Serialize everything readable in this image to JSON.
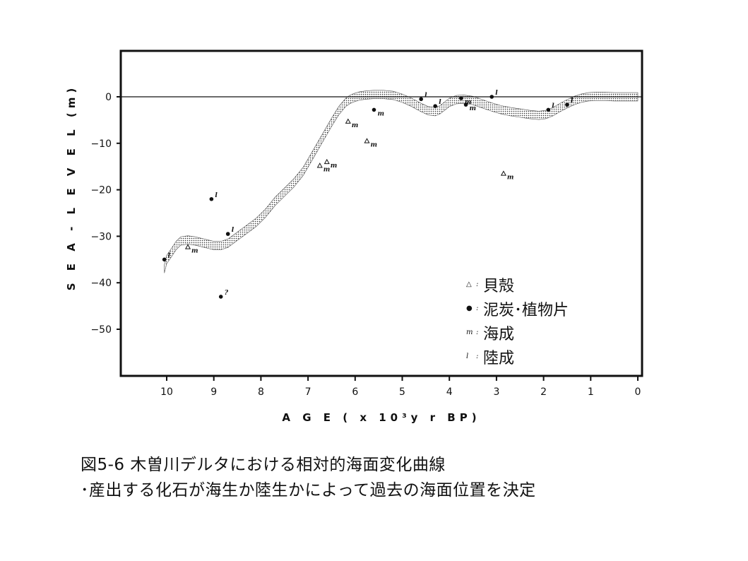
{
  "chart_data": {
    "type": "scatter",
    "xlabel": "A G E   ( x 10³y r BP)",
    "ylabel": "S E A - L E V E L (m)",
    "xlim": [
      11,
      0
    ],
    "ylim": [
      -58,
      7
    ],
    "x_ticks": [
      10,
      9,
      8,
      7,
      6,
      5,
      4,
      3,
      2,
      1,
      0
    ],
    "y_ticks": [
      0,
      -10,
      -20,
      -30,
      -40,
      -50
    ],
    "grid": false,
    "zero_line": true,
    "sea_level_band": {
      "x": [
        10.05,
        10.0,
        9.9,
        9.8,
        9.7,
        9.55,
        9.4,
        9.2,
        9.0,
        8.85,
        8.7,
        8.5,
        8.3,
        8.1,
        7.9,
        7.7,
        7.5,
        7.3,
        7.1,
        6.9,
        6.7,
        6.5,
        6.35,
        6.2,
        6.1,
        6.0,
        5.9,
        5.75,
        5.6,
        5.4,
        5.2,
        5.0,
        4.8,
        4.6,
        4.45,
        4.3,
        4.2,
        4.1,
        4.0,
        3.85,
        3.7,
        3.5,
        3.3,
        3.1,
        2.9,
        2.7,
        2.5,
        2.3,
        2.1,
        1.95,
        1.8,
        1.65,
        1.5,
        1.35,
        1.2,
        1.05,
        0.9,
        0.7,
        0.5,
        0.3,
        0.0
      ],
      "center": [
        -37,
        -35,
        -33.5,
        -32,
        -31,
        -30.8,
        -31,
        -31.5,
        -32,
        -32,
        -31.5,
        -30,
        -28.5,
        -27,
        -25,
        -22.5,
        -20.5,
        -18.5,
        -16,
        -12.5,
        -9,
        -5.5,
        -3,
        -1.2,
        -0.5,
        -0.1,
        0.2,
        0.4,
        0.5,
        0.5,
        0.3,
        -0.3,
        -1.2,
        -2.3,
        -3,
        -3.2,
        -2.8,
        -2,
        -1.2,
        -0.6,
        -0.5,
        -0.8,
        -1.5,
        -2.2,
        -2.8,
        -3.2,
        -3.5,
        -3.8,
        -4,
        -3.8,
        -3.2,
        -2.3,
        -1.5,
        -0.8,
        -0.3,
        0,
        0.1,
        0.1,
        0,
        0,
        0
      ],
      "half_width": 0.9
    },
    "points": [
      {
        "x": 10.05,
        "y": -35,
        "type": "peat",
        "origin": "terrestrial",
        "label": "l"
      },
      {
        "x": 9.55,
        "y": -32.3,
        "type": "shell",
        "origin": "marine",
        "label": "m"
      },
      {
        "x": 9.05,
        "y": -22,
        "type": "peat",
        "origin": "terrestrial",
        "label": "l"
      },
      {
        "x": 8.7,
        "y": -29.5,
        "type": "peat",
        "origin": "terrestrial",
        "label": "l"
      },
      {
        "x": 8.85,
        "y": -43,
        "type": "peat",
        "origin": "unknown",
        "label": "?"
      },
      {
        "x": 6.75,
        "y": -14.8,
        "type": "shell",
        "origin": "marine",
        "label": "m"
      },
      {
        "x": 6.6,
        "y": -14,
        "type": "shell",
        "origin": "marine",
        "label": "m"
      },
      {
        "x": 6.15,
        "y": -5.3,
        "type": "shell",
        "origin": "marine",
        "label": "m"
      },
      {
        "x": 5.75,
        "y": -9.5,
        "type": "shell",
        "origin": "marine",
        "label": "m"
      },
      {
        "x": 5.6,
        "y": -2.8,
        "type": "peat",
        "origin": "marine",
        "label": "m"
      },
      {
        "x": 4.6,
        "y": -0.5,
        "type": "peat",
        "origin": "terrestrial",
        "label": "l"
      },
      {
        "x": 4.3,
        "y": -2,
        "type": "peat",
        "origin": "terrestrial",
        "label": "l"
      },
      {
        "x": 3.75,
        "y": -0.3,
        "type": "peat",
        "origin": "marine",
        "label": "m"
      },
      {
        "x": 3.65,
        "y": -1.7,
        "type": "peat",
        "origin": "marine",
        "label": "m"
      },
      {
        "x": 3.1,
        "y": 0,
        "type": "peat",
        "origin": "terrestrial",
        "label": "l"
      },
      {
        "x": 2.85,
        "y": -16.5,
        "type": "shell",
        "origin": "marine",
        "label": "m"
      },
      {
        "x": 1.9,
        "y": -2.8,
        "type": "peat",
        "origin": "terrestrial",
        "label": "l"
      },
      {
        "x": 1.5,
        "y": -1.7,
        "type": "peat",
        "origin": "terrestrial",
        "label": "l"
      }
    ],
    "legend": {
      "placement": "bottom-right",
      "items": [
        {
          "symbol": "△",
          "sep": ":",
          "label": "貝殻"
        },
        {
          "symbol": "●",
          "sep": ":",
          "label": "泥炭･植物片"
        },
        {
          "symbol": "m",
          "sep": ":",
          "label": "海成"
        },
        {
          "symbol": "l",
          "sep": ":",
          "label": "陸成"
        }
      ]
    }
  },
  "caption": {
    "line1": "図5-6  木曽川デルタにおける相対的海面変化曲線",
    "line2": "･産出する化石が海生か陸生かによって過去の海面位置を決定"
  },
  "colors": {
    "ink": "#111111",
    "band_fill": "#b8b8b8",
    "background": "#ffffff"
  }
}
